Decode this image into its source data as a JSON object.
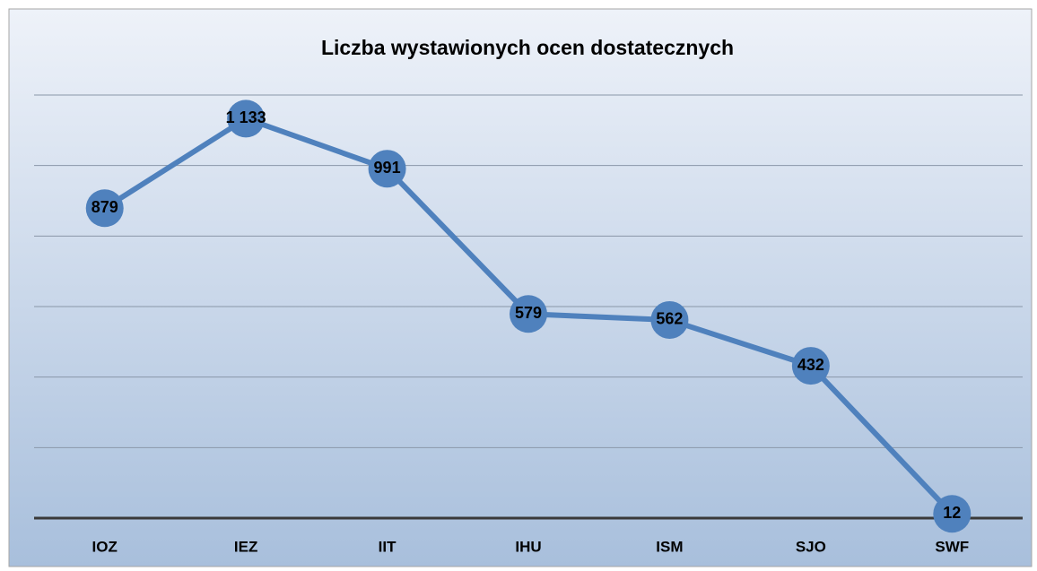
{
  "chart_data": {
    "type": "line",
    "title": "Liczba wystawionych ocen dostatecznych",
    "categories": [
      "IOZ",
      "IEZ",
      "IIT",
      "IHU",
      "ISM",
      "SJO",
      "SWF"
    ],
    "series": [
      {
        "color": "#4f81bd",
        "values": [
          879,
          1133,
          991,
          579,
          562,
          432,
          12
        ],
        "value_labels": [
          "879",
          "1 133",
          "991",
          "579",
          "562",
          "432",
          "12"
        ]
      }
    ],
    "ylim": [
      0,
      1200
    ],
    "yticks": [
      0,
      200,
      400,
      600,
      800,
      1000,
      1200
    ],
    "grid": true
  }
}
